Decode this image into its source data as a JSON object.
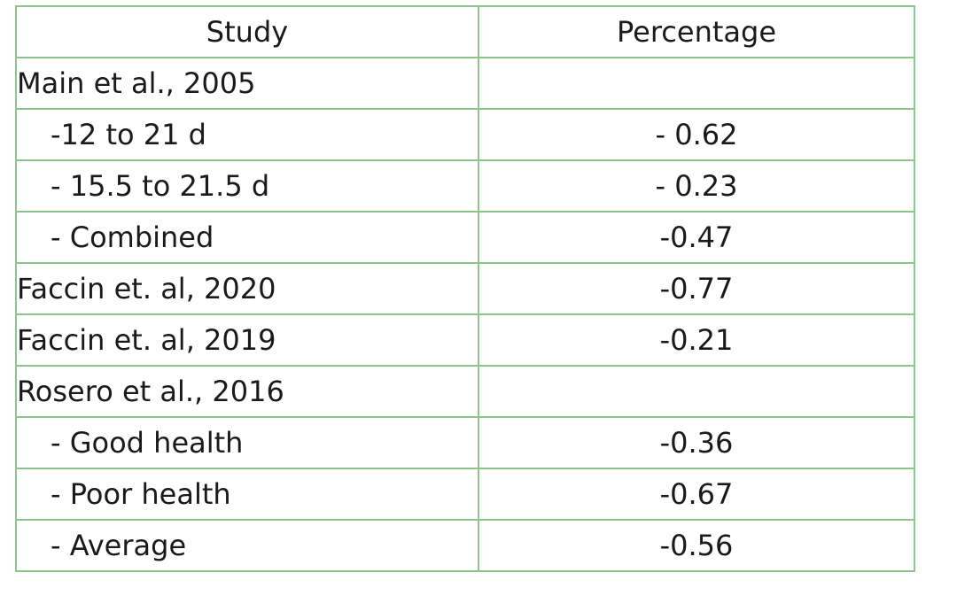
{
  "table": {
    "headers": [
      "Study",
      "Percentage"
    ],
    "rows": [
      {
        "study": "Main et al., 2005",
        "percentage": "",
        "indent": false
      },
      {
        "study": "-12 to 21 d",
        "percentage": "- 0.62",
        "indent": true
      },
      {
        "study": "- 15.5 to 21.5 d",
        "percentage": "- 0.23",
        "indent": true
      },
      {
        "study": "- Combined",
        "percentage": "-0.47",
        "indent": true
      },
      {
        "study": "Faccin et. al,  2020",
        "percentage": "-0.77",
        "indent": false
      },
      {
        "study": "Faccin et. al,  2019",
        "percentage": "-0.21",
        "indent": false
      },
      {
        "study": "Rosero et al., 2016",
        "percentage": "",
        "indent": false
      },
      {
        "study": "- Good health",
        "percentage": "-0.36",
        "indent": true
      },
      {
        "study": "- Poor health",
        "percentage": "-0.67",
        "indent": true
      },
      {
        "study": "- Average",
        "percentage": "-0.56",
        "indent": true
      }
    ]
  },
  "colors": {
    "border": "#8cc68c",
    "text": "#1a1a1a",
    "background": "#ffffff"
  }
}
